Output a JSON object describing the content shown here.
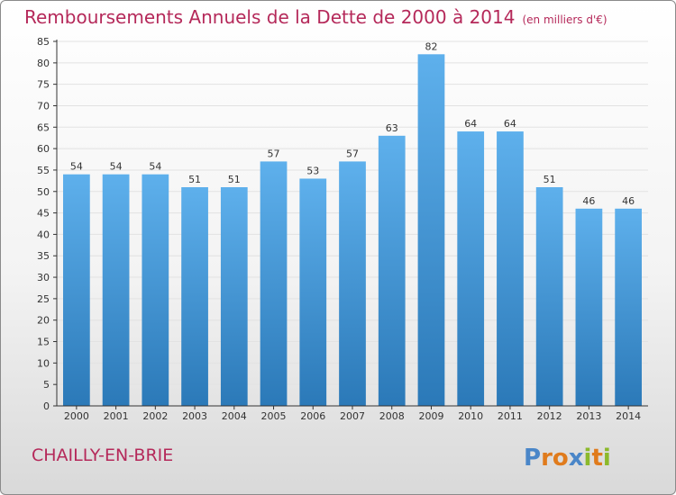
{
  "title": "Remboursements Annuels de la Dette de 2000 à 2014",
  "unit": "(en milliers d'€)",
  "city": "CHAILLY-EN-BRIE",
  "logo_text": "Proxiti",
  "colors": {
    "title": "#b5295a",
    "bar_top": "#5eb0ec",
    "bar_bottom": "#2b79b8",
    "axis": "#333333",
    "grid": "#e2e2e2"
  },
  "chart_data": {
    "type": "bar",
    "categories": [
      "2000",
      "2001",
      "2002",
      "2003",
      "2004",
      "2005",
      "2006",
      "2007",
      "2008",
      "2009",
      "2010",
      "2011",
      "2012",
      "2013",
      "2014"
    ],
    "values": [
      54,
      54,
      54,
      51,
      51,
      57,
      53,
      57,
      63,
      82,
      64,
      64,
      51,
      46,
      46
    ],
    "data_labels": [
      "54",
      "54",
      "54",
      "51",
      "51",
      "57",
      "53",
      "57",
      "63",
      "82",
      "64",
      "64",
      "51",
      "46",
      "46"
    ],
    "title": "Remboursements Annuels de la Dette de 2000 à 2014",
    "xlabel": "",
    "ylabel": "",
    "ylim": [
      0,
      85
    ],
    "yticks": [
      0,
      5,
      10,
      15,
      20,
      25,
      30,
      35,
      40,
      45,
      50,
      55,
      60,
      65,
      70,
      75,
      80,
      85
    ],
    "grid": true,
    "legend": "none"
  }
}
